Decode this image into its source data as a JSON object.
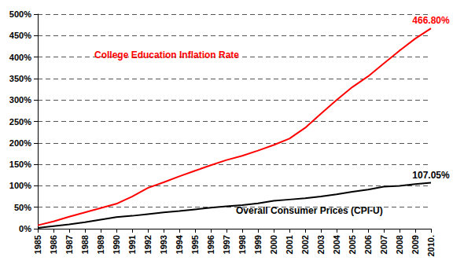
{
  "chart_data": {
    "type": "line",
    "categories": [
      "1985",
      "1986",
      "1987",
      "1988",
      "1989",
      "1990",
      "1991",
      "1992",
      "1993",
      "1994",
      "1995",
      "1996",
      "1997",
      "1998",
      "1999",
      "2000",
      "2001",
      "2002",
      "2003",
      "2004",
      "2005",
      "2006",
      "2007",
      "2008",
      "2009",
      "2010."
    ],
    "series": [
      {
        "name": "College Education Inflation Rate",
        "color": "#ff0000",
        "values": [
          8,
          17,
          28,
          38,
          48,
          58,
          75,
          95,
          108,
          122,
          135,
          148,
          160,
          170,
          182,
          195,
          210,
          235,
          268,
          300,
          330,
          355,
          385,
          415,
          443,
          466.8
        ],
        "value_labels": [
          null,
          null,
          null,
          null,
          null,
          null,
          null,
          null,
          null,
          null,
          null,
          null,
          null,
          null,
          null,
          null,
          null,
          null,
          null,
          null,
          null,
          null,
          null,
          null,
          null,
          "466.80%"
        ]
      },
      {
        "name": "Overall Consumer Prices (CPI-U)",
        "color": "#000000",
        "values": [
          2,
          6,
          10,
          15,
          21,
          27,
          30,
          34,
          38,
          41,
          45,
          49,
          52,
          55,
          59,
          65,
          68,
          71,
          75,
          80,
          86,
          91,
          98,
          100,
          104,
          107.05
        ],
        "value_labels": [
          null,
          null,
          null,
          null,
          null,
          null,
          null,
          null,
          null,
          null,
          null,
          null,
          null,
          null,
          null,
          null,
          null,
          null,
          null,
          null,
          null,
          null,
          null,
          null,
          null,
          "107.05%"
        ]
      }
    ],
    "ylim": [
      0,
      500
    ],
    "yticks": [
      {
        "value": 0,
        "label": "0%"
      },
      {
        "value": 50,
        "label": "50%"
      },
      {
        "value": 100,
        "label": "100%"
      },
      {
        "value": 150,
        "label": "150%"
      },
      {
        "value": 200,
        "label": "200%"
      },
      {
        "value": 250,
        "label": "250%"
      },
      {
        "value": 300,
        "label": "300%"
      },
      {
        "value": 350,
        "label": "350%"
      },
      {
        "value": 400,
        "label": "400%"
      },
      {
        "value": 450,
        "label": "450%"
      },
      {
        "value": 500,
        "label": "500%"
      }
    ],
    "grid": true
  }
}
